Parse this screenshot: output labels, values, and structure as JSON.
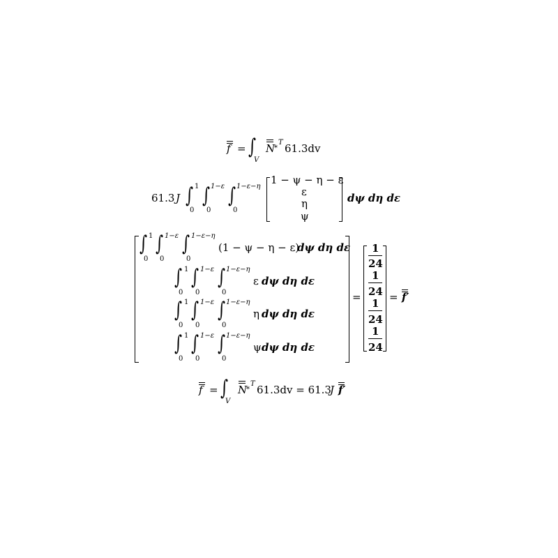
{
  "eq1": {
    "f": "f",
    "eq": "=",
    "int_sub": "V",
    "N": "N",
    "star": "*",
    "T": "T",
    "rest": "61.3dv"
  },
  "eq2": {
    "coef": "61.3",
    "J": "J",
    "lim_lo": "0",
    "lim1_hi": "1",
    "lim2_hi": "1−ε",
    "lim3_hi": "1−ε−η",
    "vec": [
      "1 − ψ − η − ε",
      "ε",
      "η",
      "ψ"
    ],
    "diff": "dψ dη dε"
  },
  "eq3": {
    "rows": [
      {
        "integrand": "(1 − ψ − η − ε)",
        "diff": "dψ dη dε"
      },
      {
        "integrand": "ε",
        "diff": "dψ dη dε"
      },
      {
        "integrand": "η",
        "diff": "dψ dη dε"
      },
      {
        "integrand": "ψ",
        "diff": "dψ dη dε"
      }
    ],
    "lim_lo": "0",
    "lim1_hi": "1",
    "lim2_hi": "1−ε",
    "lim3_hi": "1−ε−η",
    "eq": "=",
    "frac_num": "1",
    "frac_den": "24",
    "f_prime": "f′"
  },
  "eq4": {
    "f": "f",
    "eq": "=",
    "int_sub": "V",
    "N": "N",
    "star": "*",
    "T": "T",
    "mid": "61.3dv = 61.3",
    "J": "J",
    "f_prime": "f′"
  }
}
